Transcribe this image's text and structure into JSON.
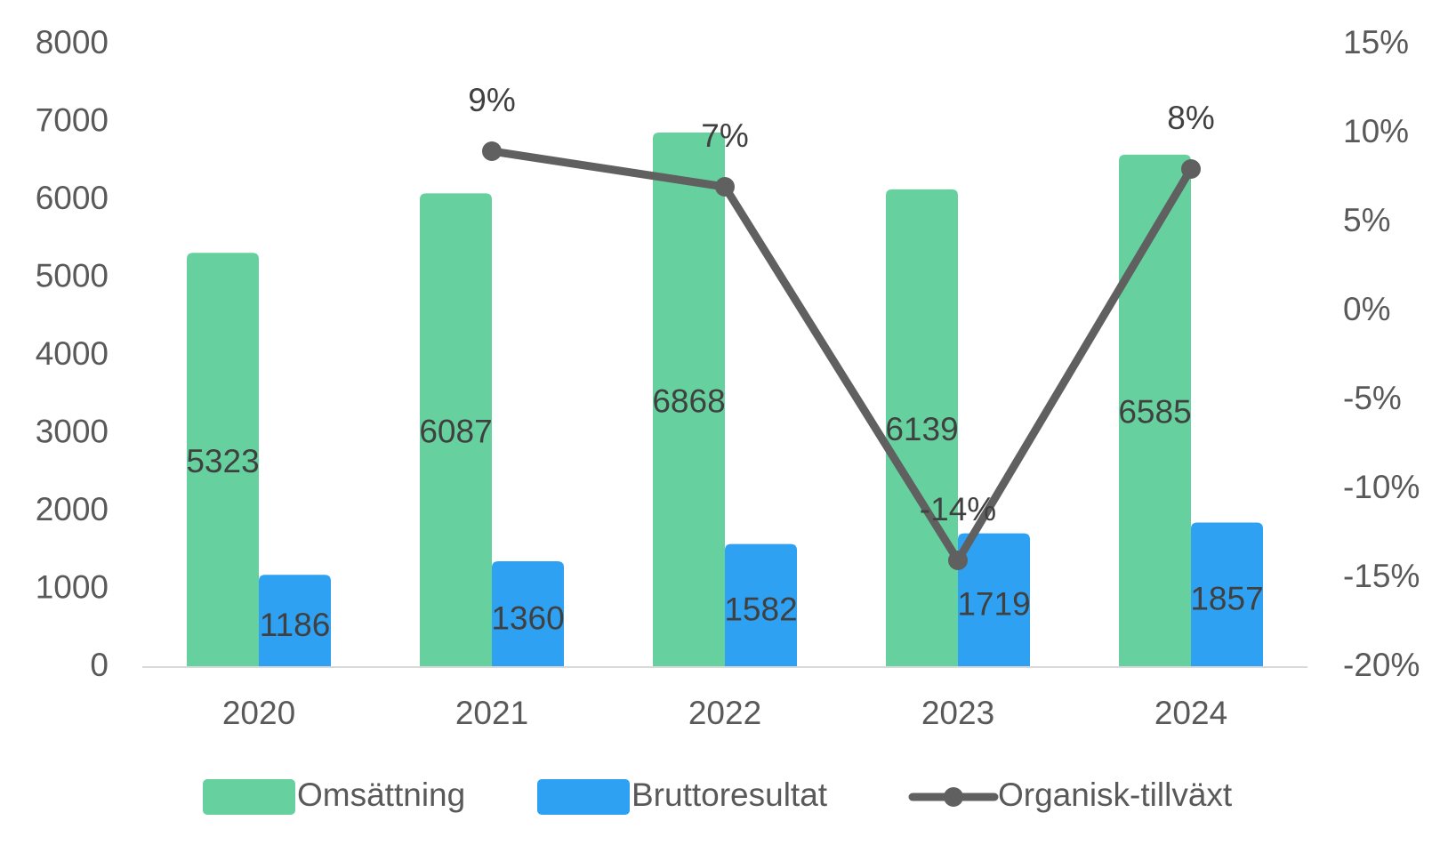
{
  "chart_data": {
    "type": "bar",
    "categories": [
      "2020",
      "2021",
      "2022",
      "2023",
      "2024"
    ],
    "series": [
      {
        "name": "Omsättning",
        "kind": "bar",
        "axis": "left",
        "color": "#66D19E",
        "values": [
          5323,
          6087,
          6868,
          6139,
          6585
        ]
      },
      {
        "name": "Bruttoresultat",
        "kind": "bar",
        "axis": "left",
        "color": "#2EA1F2",
        "values": [
          1186,
          1360,
          1582,
          1719,
          1857
        ]
      },
      {
        "name": "Organisk-tillväxt",
        "kind": "line",
        "axis": "right",
        "color": "#606060",
        "values": [
          null,
          9,
          7,
          -14,
          8
        ]
      }
    ],
    "data_labels": {
      "Omsättning": [
        "5323",
        "6087",
        "6868",
        "6139",
        "6585"
      ],
      "Bruttoresultat": [
        "1186",
        "1360",
        "1582",
        "1719",
        "1857"
      ],
      "Organisk-tillväxt": [
        "",
        "9%",
        "7%",
        "-14%",
        "8%"
      ]
    },
    "y_left": {
      "min": 0,
      "max": 8000,
      "ticks": [
        "0",
        "1000",
        "2000",
        "3000",
        "4000",
        "5000",
        "6000",
        "7000",
        "8000"
      ]
    },
    "y_right": {
      "min": -20,
      "max": 15,
      "ticks": [
        "-20%",
        "-15%",
        "-10%",
        "-5%",
        "0%",
        "5%",
        "10%",
        "15%"
      ]
    },
    "grid": false,
    "legend": "bottom",
    "title": ""
  }
}
